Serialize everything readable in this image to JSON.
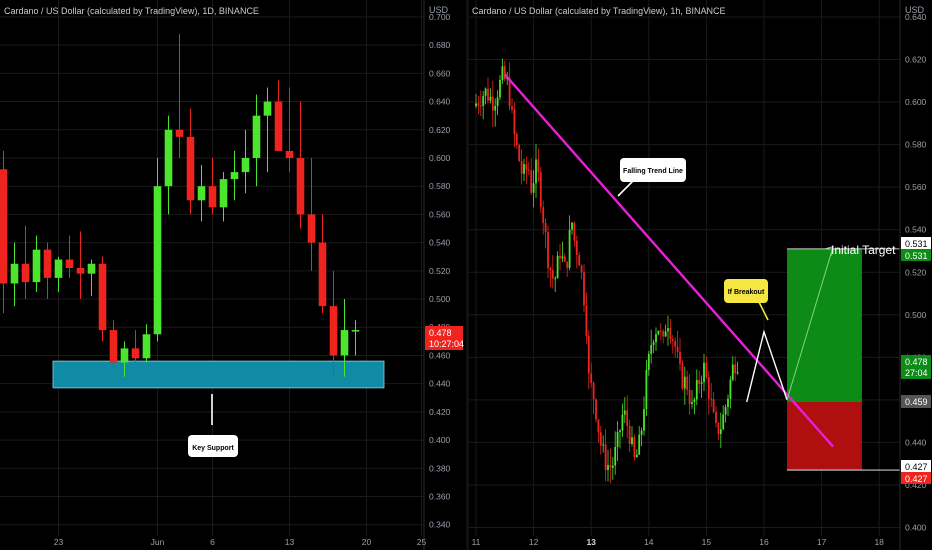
{
  "colors": {
    "background": "#000000",
    "up_candle": "#4be52e",
    "down_candle": "#f0241f",
    "axis_text": "#9aa0aa",
    "grid": "#1a1a1a",
    "support_zone": "#0f8ba6",
    "trend_line": "#e81fd6",
    "target_zone": "#0e8a16",
    "stop_zone": "#b00f0f"
  },
  "chart_data": [
    {
      "type": "candlestick",
      "title": "Cardano / US Dollar (calculated by TradingView), 1D, BINANCE",
      "price_axis_unit": "USD",
      "price_ticks": [
        "0.700",
        "0.680",
        "0.660",
        "0.640",
        "0.620",
        "0.600",
        "0.580",
        "0.560",
        "0.540",
        "0.520",
        "0.500",
        "0.480",
        "0.460",
        "0.440",
        "0.420",
        "0.400",
        "0.380",
        "0.360",
        "0.340"
      ],
      "ylim": [
        0.332,
        0.712
      ],
      "time_ticks": [
        {
          "label": "23",
          "index": 5
        },
        {
          "label": "Jun",
          "index": 14
        },
        {
          "label": "6",
          "index": 19
        },
        {
          "label": "13",
          "index": 26
        },
        {
          "label": "20",
          "index": 33
        },
        {
          "label": "25",
          "index": 38
        }
      ],
      "candles": [
        [
          0.592,
          0.605,
          0.49,
          0.511
        ],
        [
          0.511,
          0.54,
          0.495,
          0.525
        ],
        [
          0.525,
          0.552,
          0.5,
          0.512
        ],
        [
          0.512,
          0.545,
          0.505,
          0.535
        ],
        [
          0.535,
          0.54,
          0.5,
          0.515
        ],
        [
          0.515,
          0.53,
          0.505,
          0.528
        ],
        [
          0.528,
          0.545,
          0.515,
          0.522
        ],
        [
          0.522,
          0.548,
          0.5,
          0.518
        ],
        [
          0.518,
          0.528,
          0.502,
          0.525
        ],
        [
          0.525,
          0.53,
          0.47,
          0.478
        ],
        [
          0.478,
          0.485,
          0.45,
          0.455
        ],
        [
          0.455,
          0.47,
          0.445,
          0.465
        ],
        [
          0.465,
          0.478,
          0.455,
          0.458
        ],
        [
          0.458,
          0.482,
          0.455,
          0.475
        ],
        [
          0.475,
          0.6,
          0.47,
          0.58
        ],
        [
          0.58,
          0.63,
          0.56,
          0.62
        ],
        [
          0.62,
          0.688,
          0.6,
          0.615
        ],
        [
          0.615,
          0.635,
          0.56,
          0.57
        ],
        [
          0.57,
          0.595,
          0.555,
          0.58
        ],
        [
          0.58,
          0.6,
          0.56,
          0.565
        ],
        [
          0.565,
          0.59,
          0.555,
          0.585
        ],
        [
          0.585,
          0.605,
          0.57,
          0.59
        ],
        [
          0.59,
          0.62,
          0.575,
          0.6
        ],
        [
          0.6,
          0.645,
          0.58,
          0.63
        ],
        [
          0.63,
          0.65,
          0.59,
          0.64
        ],
        [
          0.64,
          0.655,
          0.605,
          0.605
        ],
        [
          0.605,
          0.65,
          0.59,
          0.6
        ],
        [
          0.6,
          0.64,
          0.55,
          0.56
        ],
        [
          0.56,
          0.6,
          0.52,
          0.54
        ],
        [
          0.54,
          0.56,
          0.49,
          0.495
        ],
        [
          0.495,
          0.52,
          0.445,
          0.46
        ],
        [
          0.46,
          0.5,
          0.445,
          0.478
        ],
        [
          0.478,
          0.485,
          0.46,
          0.478
        ]
      ],
      "support_zone": {
        "label": "Key Support",
        "low": 0.437,
        "high": 0.456
      },
      "last_price": {
        "value": "0.478",
        "countdown": "10:27:04"
      }
    },
    {
      "type": "candlestick",
      "title": "Cardano / US Dollar (calculated by TradingView), 1h, BINANCE",
      "price_axis_unit": "USD",
      "price_ticks": [
        "0.640",
        "0.620",
        "0.600",
        "0.580",
        "0.560",
        "0.540",
        "0.520",
        "0.500",
        "0.480",
        "0.460",
        "0.440",
        "0.420",
        "0.400"
      ],
      "ylim": [
        0.396,
        0.648
      ],
      "time_ticks": [
        {
          "label": "11",
          "day": 11
        },
        {
          "label": "12",
          "day": 12
        },
        {
          "label": "13",
          "day": 13
        },
        {
          "label": "14",
          "day": 14
        },
        {
          "label": "15",
          "day": 15
        },
        {
          "label": "16",
          "day": 16
        },
        {
          "label": "17",
          "day": 17
        },
        {
          "label": "18",
          "day": 18
        }
      ],
      "price_path": [
        [
          11.0,
          0.598
        ],
        [
          11.2,
          0.605
        ],
        [
          11.35,
          0.6
        ],
        [
          11.5,
          0.612
        ],
        [
          11.6,
          0.608
        ],
        [
          11.7,
          0.585
        ],
        [
          11.85,
          0.565
        ],
        [
          11.95,
          0.57
        ],
        [
          12.0,
          0.56
        ],
        [
          12.1,
          0.57
        ],
        [
          12.2,
          0.548
        ],
        [
          12.3,
          0.525
        ],
        [
          12.4,
          0.515
        ],
        [
          12.5,
          0.53
        ],
        [
          12.6,
          0.52
        ],
        [
          12.7,
          0.545
        ],
        [
          12.75,
          0.535
        ],
        [
          12.85,
          0.525
        ],
        [
          12.95,
          0.5
        ],
        [
          13.0,
          0.47
        ],
        [
          13.1,
          0.46
        ],
        [
          13.2,
          0.44
        ],
        [
          13.3,
          0.43
        ],
        [
          13.4,
          0.428
        ],
        [
          13.5,
          0.44
        ],
        [
          13.6,
          0.455
        ],
        [
          13.7,
          0.445
        ],
        [
          13.8,
          0.43
        ],
        [
          13.9,
          0.442
        ],
        [
          14.0,
          0.47
        ],
        [
          14.1,
          0.49
        ],
        [
          14.2,
          0.495
        ],
        [
          14.3,
          0.485
        ],
        [
          14.35,
          0.5
        ],
        [
          14.5,
          0.485
        ],
        [
          14.6,
          0.47
        ],
        [
          14.7,
          0.468
        ],
        [
          14.8,
          0.455
        ],
        [
          14.9,
          0.468
        ],
        [
          15.0,
          0.475
        ],
        [
          15.1,
          0.462
        ],
        [
          15.2,
          0.445
        ],
        [
          15.3,
          0.448
        ],
        [
          15.4,
          0.46
        ],
        [
          15.5,
          0.475
        ],
        [
          15.55,
          0.478
        ]
      ],
      "trend_line": {
        "label": "Falling Trend Line",
        "start": [
          11.5,
          0.613
        ],
        "end": [
          17.2,
          0.438
        ]
      },
      "breakout_label": "If Breakout",
      "projection": [
        [
          15.7,
          0.459
        ],
        [
          16.0,
          0.492
        ],
        [
          16.4,
          0.46
        ]
      ],
      "target_arrow": [
        [
          16.4,
          0.46
        ],
        [
          17.2,
          0.532
        ]
      ],
      "target_zone": {
        "from": 16.4,
        "to": 17.7,
        "low": 0.459,
        "high": 0.531
      },
      "stop_zone": {
        "from": 16.4,
        "to": 17.7,
        "low": 0.427,
        "high": 0.459
      },
      "target_label": "Initial Target",
      "price_labels": [
        {
          "value": "0.531",
          "kind": "white"
        },
        {
          "value": "0.531",
          "kind": "green"
        },
        {
          "value": "0.478",
          "kind": "green",
          "sub": "27:04"
        },
        {
          "value": "0.459",
          "kind": "gray"
        },
        {
          "value": "0.427",
          "kind": "white"
        },
        {
          "value": "0.427",
          "kind": "red"
        }
      ]
    }
  ]
}
